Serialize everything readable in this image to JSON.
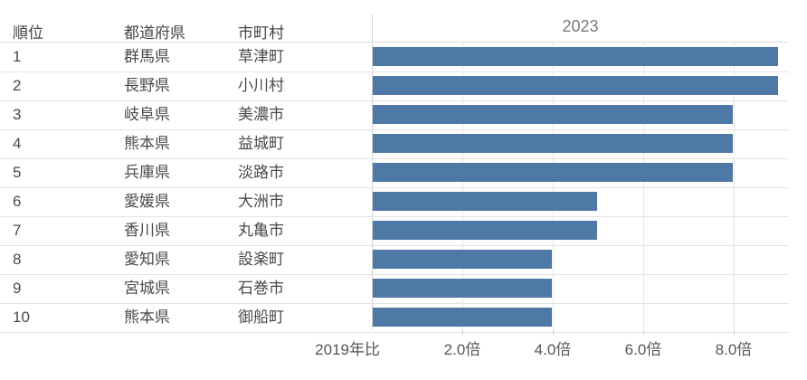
{
  "table": {
    "columns": [
      {
        "key": "rank",
        "label": "順位"
      },
      {
        "key": "prefecture",
        "label": "都道府県"
      },
      {
        "key": "municipality",
        "label": "市町村"
      }
    ],
    "rows": [
      {
        "rank": "1",
        "prefecture": "群馬県",
        "municipality": "草津町",
        "value": 9.0
      },
      {
        "rank": "2",
        "prefecture": "長野県",
        "municipality": "小川村",
        "value": 9.0
      },
      {
        "rank": "3",
        "prefecture": "岐阜県",
        "municipality": "美濃市",
        "value": 8.0
      },
      {
        "rank": "4",
        "prefecture": "熊本県",
        "municipality": "益城町",
        "value": 8.0
      },
      {
        "rank": "5",
        "prefecture": "兵庫県",
        "municipality": "淡路市",
        "value": 8.0
      },
      {
        "rank": "6",
        "prefecture": "愛媛県",
        "municipality": "大洲市",
        "value": 5.0
      },
      {
        "rank": "7",
        "prefecture": "香川県",
        "municipality": "丸亀市",
        "value": 5.0
      },
      {
        "rank": "8",
        "prefecture": "愛知県",
        "municipality": "設楽町",
        "value": 4.0
      },
      {
        "rank": "9",
        "prefecture": "宮城県",
        "municipality": "石巻市",
        "value": 4.0
      },
      {
        "rank": "10",
        "prefecture": "熊本県",
        "municipality": "御船町",
        "value": 4.0
      }
    ]
  },
  "chart_data": {
    "type": "bar",
    "orientation": "horizontal",
    "title": "2023",
    "categories": [
      "草津町",
      "小川村",
      "美濃市",
      "益城町",
      "淡路市",
      "大洲市",
      "丸亀市",
      "設楽町",
      "石巻市",
      "御船町"
    ],
    "values": [
      9.0,
      9.0,
      8.0,
      8.0,
      8.0,
      5.0,
      5.0,
      4.0,
      4.0,
      4.0
    ],
    "xlabel": "2019年比",
    "ylabel": "",
    "xlim": [
      0,
      9.2
    ],
    "x_ticks": [
      {
        "value": 2.0,
        "label": "2.0倍"
      },
      {
        "value": 4.0,
        "label": "4.0倍"
      },
      {
        "value": 6.0,
        "label": "6.0倍"
      },
      {
        "value": 8.0,
        "label": "8.0倍"
      }
    ],
    "grid": true,
    "legend": false,
    "bar_color": "#4e79a7"
  }
}
